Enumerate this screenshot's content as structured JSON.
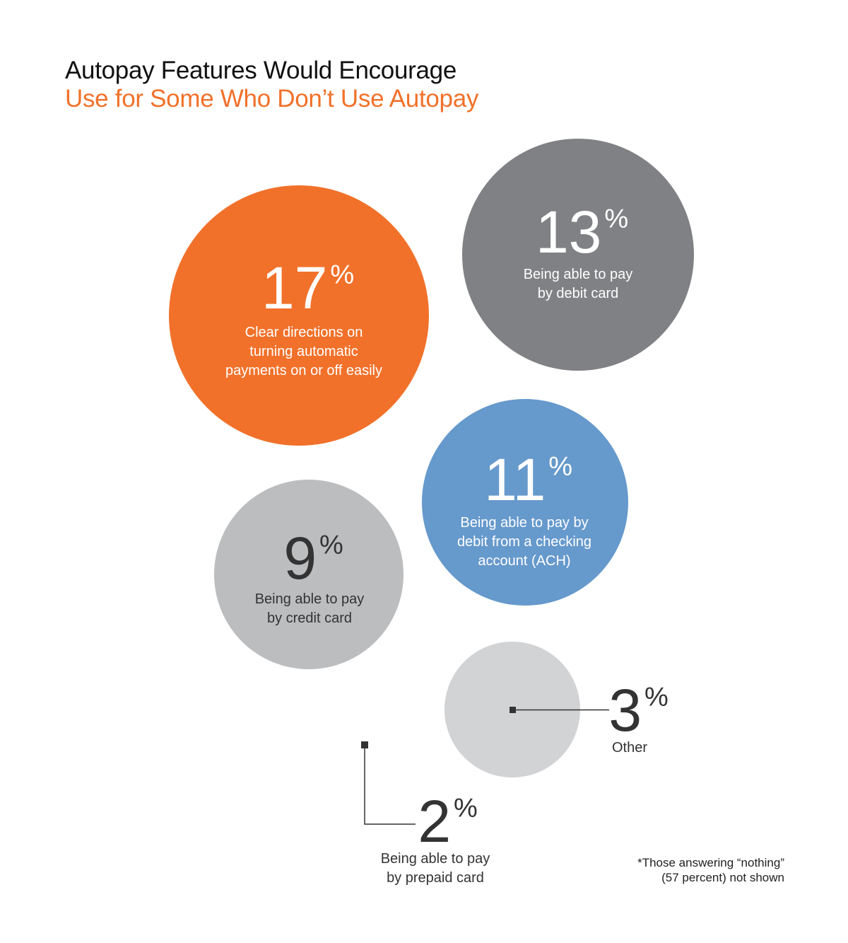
{
  "title": "Autopay Features Would Encourage",
  "subtitle": "Use for Some Who Don’t Use Autopay",
  "colors": {
    "title": "#111111",
    "subtitle": "#f1712a",
    "label_dark": "#333333",
    "connector": "#333333"
  },
  "chart_data": {
    "type": "bubble",
    "title": "Autopay Features Would Encourage Use for Some Who Don’t Use Autopay",
    "unit": "%",
    "series": [
      {
        "id": "clear-directions",
        "value": 17,
        "label_lines": [
          "Clear directions on",
          "turning automatic",
          "payments on or off easily"
        ],
        "color": "#f1712a",
        "text_color": "#ffffff"
      },
      {
        "id": "debit-card",
        "value": 13,
        "label_lines": [
          "Being able to pay",
          "by debit card"
        ],
        "color": "#808184",
        "text_color": "#ffffff"
      },
      {
        "id": "ach",
        "value": 11,
        "label_lines": [
          "Being able to pay by",
          "debit from a checking",
          "account (ACH)"
        ],
        "color": "#6699cc",
        "text_color": "#ffffff"
      },
      {
        "id": "credit-card",
        "value": 9,
        "label_lines": [
          "Being able to pay",
          "by credit card"
        ],
        "color": "#bcbdbf",
        "text_color": "#333333"
      },
      {
        "id": "other",
        "value": 3,
        "label_lines": [
          "Other"
        ],
        "color": "#d2d3d5",
        "text_color": "#333333"
      },
      {
        "id": "prepaid-card",
        "value": 2,
        "label_lines": [
          "Being able to pay",
          "by prepaid card"
        ],
        "color": "#333333",
        "text_color": "#333333"
      }
    ]
  },
  "footnote": {
    "line1": "*Those answering “nothing”",
    "line2": "(57 percent) not shown"
  }
}
